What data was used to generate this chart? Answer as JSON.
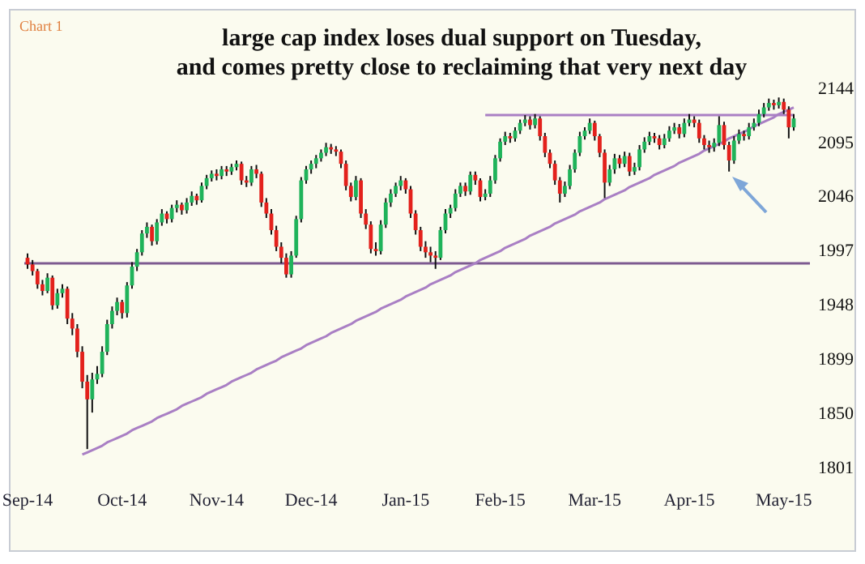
{
  "chart_data": {
    "type": "candlestick",
    "title": "large cap index loses dual support on Tuesday,\nand comes pretty close to reclaiming that very next day",
    "annotations": [
      "Chart 1"
    ],
    "categories": [
      "Sep-14",
      null,
      null,
      null,
      null,
      null,
      null,
      null,
      null,
      null,
      null,
      null,
      null,
      null,
      null,
      null,
      null,
      null,
      null,
      "Oct-14",
      null,
      null,
      null,
      null,
      null,
      null,
      null,
      null,
      null,
      null,
      null,
      null,
      null,
      null,
      null,
      null,
      null,
      null,
      "Nov-14",
      null,
      null,
      null,
      null,
      null,
      null,
      null,
      null,
      null,
      null,
      null,
      null,
      null,
      null,
      null,
      null,
      null,
      null,
      "Dec-14",
      null,
      null,
      null,
      null,
      null,
      null,
      null,
      null,
      null,
      null,
      null,
      null,
      null,
      null,
      null,
      null,
      null,
      null,
      "Jan-15",
      null,
      null,
      null,
      null,
      null,
      null,
      null,
      null,
      null,
      null,
      null,
      null,
      null,
      null,
      null,
      null,
      null,
      null,
      "Feb-15",
      null,
      null,
      null,
      null,
      null,
      null,
      null,
      null,
      null,
      null,
      null,
      null,
      null,
      null,
      null,
      null,
      null,
      null,
      "Mar-15",
      null,
      null,
      null,
      null,
      null,
      null,
      null,
      null,
      null,
      null,
      null,
      null,
      null,
      null,
      null,
      null,
      null,
      null,
      "Apr-15",
      null,
      null,
      null,
      null,
      null,
      null,
      null,
      null,
      null,
      null,
      null,
      null,
      null,
      null,
      null,
      null,
      null,
      null,
      "May-15",
      null,
      null
    ],
    "ohlc": [
      [
        1990,
        1994,
        1980,
        1984
      ],
      [
        1984,
        1988,
        1974,
        1978
      ],
      [
        1978,
        1980,
        1962,
        1966
      ],
      [
        1966,
        1970,
        1956,
        1960
      ],
      [
        1960,
        1976,
        1958,
        1972
      ],
      [
        1972,
        1974,
        1943,
        1947
      ],
      [
        1947,
        1962,
        1944,
        1958
      ],
      [
        1958,
        1966,
        1954,
        1962
      ],
      [
        1962,
        1964,
        1930,
        1935
      ],
      [
        1935,
        1940,
        1920,
        1926
      ],
      [
        1926,
        1930,
        1900,
        1905
      ],
      [
        1905,
        1910,
        1872,
        1878
      ],
      [
        1878,
        1884,
        1817,
        1862
      ],
      [
        1862,
        1886,
        1850,
        1880
      ],
      [
        1880,
        1892,
        1876,
        1885
      ],
      [
        1885,
        1910,
        1882,
        1905
      ],
      [
        1905,
        1934,
        1902,
        1930
      ],
      [
        1930,
        1946,
        1926,
        1942
      ],
      [
        1942,
        1954,
        1938,
        1950
      ],
      [
        1950,
        1952,
        1935,
        1940
      ],
      [
        1940,
        1968,
        1936,
        1965
      ],
      [
        1965,
        1986,
        1962,
        1982
      ],
      [
        1982,
        1998,
        1978,
        1995
      ],
      [
        1995,
        2015,
        1992,
        2012
      ],
      [
        2012,
        2022,
        2008,
        2018
      ],
      [
        2018,
        2020,
        2001,
        2005
      ],
      [
        2005,
        2025,
        2002,
        2022
      ],
      [
        2022,
        2034,
        2019,
        2030
      ],
      [
        2030,
        2032,
        2021,
        2025
      ],
      [
        2025,
        2038,
        2022,
        2035
      ],
      [
        2035,
        2042,
        2031,
        2038
      ],
      [
        2038,
        2040,
        2029,
        2033
      ],
      [
        2033,
        2044,
        2030,
        2040
      ],
      [
        2040,
        2050,
        2037,
        2046
      ],
      [
        2046,
        2048,
        2038,
        2042
      ],
      [
        2042,
        2058,
        2040,
        2055
      ],
      [
        2055,
        2065,
        2052,
        2062
      ],
      [
        2062,
        2069,
        2059,
        2066
      ],
      [
        2066,
        2070,
        2060,
        2064
      ],
      [
        2064,
        2073,
        2061,
        2070
      ],
      [
        2070,
        2073,
        2064,
        2068
      ],
      [
        2068,
        2075,
        2065,
        2072
      ],
      [
        2072,
        2078,
        2069,
        2075
      ],
      [
        2075,
        2077,
        2056,
        2060
      ],
      [
        2060,
        2064,
        2054,
        2058
      ],
      [
        2058,
        2073,
        2055,
        2070
      ],
      [
        2070,
        2074,
        2062,
        2066
      ],
      [
        2066,
        2068,
        2036,
        2040
      ],
      [
        2040,
        2044,
        2026,
        2030
      ],
      [
        2030,
        2034,
        2011,
        2015
      ],
      [
        2015,
        2019,
        1996,
        2000
      ],
      [
        2000,
        2004,
        1985,
        1990
      ],
      [
        1990,
        1994,
        1972,
        1975
      ],
      [
        1975,
        1996,
        1972,
        1992
      ],
      [
        1992,
        2028,
        1990,
        2025
      ],
      [
        2025,
        2063,
        2022,
        2060
      ],
      [
        2060,
        2073,
        2057,
        2070
      ],
      [
        2070,
        2078,
        2066,
        2075
      ],
      [
        2075,
        2083,
        2071,
        2080
      ],
      [
        2080,
        2088,
        2077,
        2085
      ],
      [
        2085,
        2094,
        2082,
        2090
      ],
      [
        2090,
        2093,
        2084,
        2088
      ],
      [
        2088,
        2091,
        2082,
        2086
      ],
      [
        2086,
        2088,
        2071,
        2075
      ],
      [
        2075,
        2078,
        2051,
        2055
      ],
      [
        2055,
        2058,
        2041,
        2045
      ],
      [
        2045,
        2064,
        2042,
        2060
      ],
      [
        2060,
        2062,
        2026,
        2030
      ],
      [
        2030,
        2034,
        2016,
        2020
      ],
      [
        2020,
        2023,
        1994,
        1998
      ],
      [
        1998,
        2004,
        1992,
        1996
      ],
      [
        1996,
        2024,
        1993,
        2020
      ],
      [
        2020,
        2044,
        2017,
        2040
      ],
      [
        2040,
        2052,
        2036,
        2048
      ],
      [
        2048,
        2058,
        2045,
        2055
      ],
      [
        2055,
        2064,
        2051,
        2060
      ],
      [
        2060,
        2062,
        2048,
        2052
      ],
      [
        2052,
        2055,
        2026,
        2030
      ],
      [
        2030,
        2033,
        2011,
        2015
      ],
      [
        2015,
        2018,
        1996,
        2000
      ],
      [
        2000,
        2005,
        1990,
        1995
      ],
      [
        1995,
        2000,
        1986,
        1992
      ],
      [
        1992,
        1996,
        1980,
        1990
      ],
      [
        1990,
        2018,
        1988,
        2015
      ],
      [
        2015,
        2034,
        2012,
        2030
      ],
      [
        2030,
        2038,
        2026,
        2035
      ],
      [
        2035,
        2052,
        2032,
        2048
      ],
      [
        2048,
        2058,
        2045,
        2055
      ],
      [
        2055,
        2058,
        2046,
        2050
      ],
      [
        2050,
        2068,
        2047,
        2065
      ],
      [
        2065,
        2068,
        2056,
        2060
      ],
      [
        2060,
        2062,
        2041,
        2045
      ],
      [
        2045,
        2052,
        2042,
        2048
      ],
      [
        2048,
        2064,
        2045,
        2060
      ],
      [
        2060,
        2083,
        2057,
        2080
      ],
      [
        2080,
        2098,
        2077,
        2095
      ],
      [
        2095,
        2104,
        2092,
        2100
      ],
      [
        2100,
        2103,
        2094,
        2098
      ],
      [
        2098,
        2108,
        2095,
        2105
      ],
      [
        2105,
        2115,
        2102,
        2112
      ],
      [
        2112,
        2119,
        2109,
        2115
      ],
      [
        2115,
        2118,
        2106,
        2110
      ],
      [
        2110,
        2120,
        2107,
        2116
      ],
      [
        2116,
        2118,
        2096,
        2100
      ],
      [
        2100,
        2103,
        2081,
        2085
      ],
      [
        2085,
        2088,
        2071,
        2075
      ],
      [
        2075,
        2078,
        2056,
        2060
      ],
      [
        2060,
        2063,
        2040,
        2048
      ],
      [
        2048,
        2059,
        2045,
        2055
      ],
      [
        2055,
        2074,
        2052,
        2070
      ],
      [
        2070,
        2088,
        2067,
        2085
      ],
      [
        2085,
        2104,
        2082,
        2100
      ],
      [
        2100,
        2108,
        2097,
        2105
      ],
      [
        2105,
        2116,
        2102,
        2112
      ],
      [
        2112,
        2114,
        2096,
        2100
      ],
      [
        2100,
        2102,
        2081,
        2085
      ],
      [
        2085,
        2088,
        2044,
        2058
      ],
      [
        2058,
        2074,
        2055,
        2070
      ],
      [
        2070,
        2084,
        2066,
        2080
      ],
      [
        2080,
        2083,
        2071,
        2075
      ],
      [
        2075,
        2086,
        2072,
        2082
      ],
      [
        2082,
        2085,
        2064,
        2068
      ],
      [
        2068,
        2076,
        2065,
        2072
      ],
      [
        2072,
        2092,
        2069,
        2088
      ],
      [
        2088,
        2099,
        2085,
        2095
      ],
      [
        2095,
        2104,
        2092,
        2100
      ],
      [
        2100,
        2103,
        2094,
        2098
      ],
      [
        2098,
        2101,
        2088,
        2092
      ],
      [
        2092,
        2102,
        2089,
        2098
      ],
      [
        2098,
        2109,
        2095,
        2105
      ],
      [
        2105,
        2112,
        2102,
        2108
      ],
      [
        2108,
        2111,
        2098,
        2102
      ],
      [
        2102,
        2116,
        2099,
        2112
      ],
      [
        2112,
        2120,
        2109,
        2115
      ],
      [
        2115,
        2118,
        2108,
        2112
      ],
      [
        2112,
        2115,
        2094,
        2098
      ],
      [
        2098,
        2101,
        2088,
        2092
      ],
      [
        2092,
        2096,
        2085,
        2090
      ],
      [
        2090,
        2098,
        2086,
        2094
      ],
      [
        2094,
        2118,
        2091,
        2110
      ],
      [
        2110,
        2113,
        2088,
        2092
      ],
      [
        2092,
        2095,
        2068,
        2078
      ],
      [
        2078,
        2100,
        2075,
        2096
      ],
      [
        2096,
        2106,
        2093,
        2102
      ],
      [
        2102,
        2105,
        2096,
        2100
      ],
      [
        2100,
        2112,
        2097,
        2108
      ],
      [
        2108,
        2116,
        2105,
        2112
      ],
      [
        2112,
        2124,
        2109,
        2120
      ],
      [
        2120,
        2130,
        2117,
        2126
      ],
      [
        2126,
        2134,
        2123,
        2130
      ],
      [
        2130,
        2133,
        2124,
        2128
      ],
      [
        2128,
        2135,
        2125,
        2131
      ],
      [
        2131,
        2134,
        2120,
        2124
      ],
      [
        2124,
        2127,
        2098,
        2108
      ],
      [
        2108,
        2120,
        2105,
        2116
      ]
    ],
    "series": [
      {
        "type": "line",
        "color": "#a97fc4",
        "values": [
          null,
          null,
          null,
          null,
          null,
          null,
          null,
          null,
          null,
          null,
          null,
          1812,
          1814,
          1816,
          1818,
          1820,
          1823,
          1825,
          1827,
          1829,
          1831,
          1834,
          1836,
          1838,
          1840,
          1842,
          1845,
          1847,
          1849,
          1851,
          1853,
          1856,
          1858,
          1860,
          1862,
          1864,
          1867,
          1869,
          1871,
          1873,
          1875,
          1878,
          1880,
          1882,
          1884,
          1886,
          1889,
          1891,
          1893,
          1895,
          1897,
          1900,
          1902,
          1904,
          1906,
          1908,
          1911,
          1913,
          1915,
          1917,
          1919,
          1922,
          1924,
          1926,
          1928,
          1930,
          1933,
          1935,
          1937,
          1939,
          1941,
          1944,
          1946,
          1948,
          1950,
          1952,
          1955,
          1957,
          1959,
          1961,
          1963,
          1966,
          1968,
          1970,
          1972,
          1974,
          1977,
          1979,
          1981,
          1983,
          1985,
          1988,
          1990,
          1992,
          1994,
          1996,
          1999,
          2001,
          2003,
          2005,
          2007,
          2010,
          2012,
          2014,
          2016,
          2018,
          2021,
          2023,
          2025,
          2027,
          2029,
          2032,
          2034,
          2036,
          2038,
          2040,
          2043,
          2045,
          2047,
          2049,
          2051,
          2054,
          2056,
          2058,
          2060,
          2062,
          2065,
          2067,
          2069,
          2071,
          2073,
          2076,
          2078,
          2080,
          2082,
          2084,
          2087,
          2089,
          2091,
          2093,
          2095,
          2098,
          2100,
          2102,
          2104,
          2106,
          2109,
          2111,
          2113,
          2115,
          2117,
          2120,
          2122,
          2124,
          2126
        ]
      },
      {
        "type": "line",
        "color": "#a97fc4",
        "values": [
          null,
          null,
          null,
          null,
          null,
          null,
          null,
          null,
          null,
          null,
          null,
          null,
          null,
          null,
          null,
          null,
          null,
          null,
          null,
          null,
          null,
          null,
          null,
          null,
          null,
          null,
          null,
          null,
          null,
          null,
          null,
          null,
          null,
          null,
          null,
          null,
          null,
          null,
          null,
          null,
          null,
          null,
          null,
          null,
          null,
          null,
          null,
          null,
          null,
          null,
          null,
          null,
          null,
          null,
          null,
          null,
          null,
          null,
          null,
          null,
          null,
          null,
          null,
          null,
          null,
          null,
          null,
          null,
          null,
          null,
          null,
          null,
          null,
          null,
          null,
          null,
          null,
          null,
          null,
          null,
          null,
          null,
          null,
          null,
          null,
          null,
          null,
          null,
          null,
          null,
          null,
          null,
          2119,
          2119,
          2119,
          2119,
          2119,
          2119,
          2119,
          2119,
          2119,
          2119,
          2119,
          2119,
          2119,
          2119,
          2119,
          2119,
          2119,
          2119,
          2119,
          2119,
          2119,
          2119,
          2119,
          2119,
          2119,
          2119,
          2119,
          2119,
          2119,
          2119,
          2119,
          2119,
          2119,
          2119,
          2119,
          2119,
          2119,
          2119,
          2119,
          2119,
          2119,
          2119,
          2119,
          2119,
          2119,
          2119,
          2119,
          2119,
          2119,
          2119,
          2119,
          2119,
          2119,
          2119,
          2119,
          2119,
          2119,
          2119,
          2119,
          2119,
          2119,
          2119,
          2119
        ]
      }
    ],
    "ref_lines": [
      {
        "axis": "y",
        "value": 1985,
        "color": "#7d5a90"
      }
    ],
    "ylim": [
      1801,
      2144
    ],
    "yticks": [
      1801,
      1850,
      1899,
      1948,
      1997,
      2046,
      2095,
      2144
    ]
  }
}
